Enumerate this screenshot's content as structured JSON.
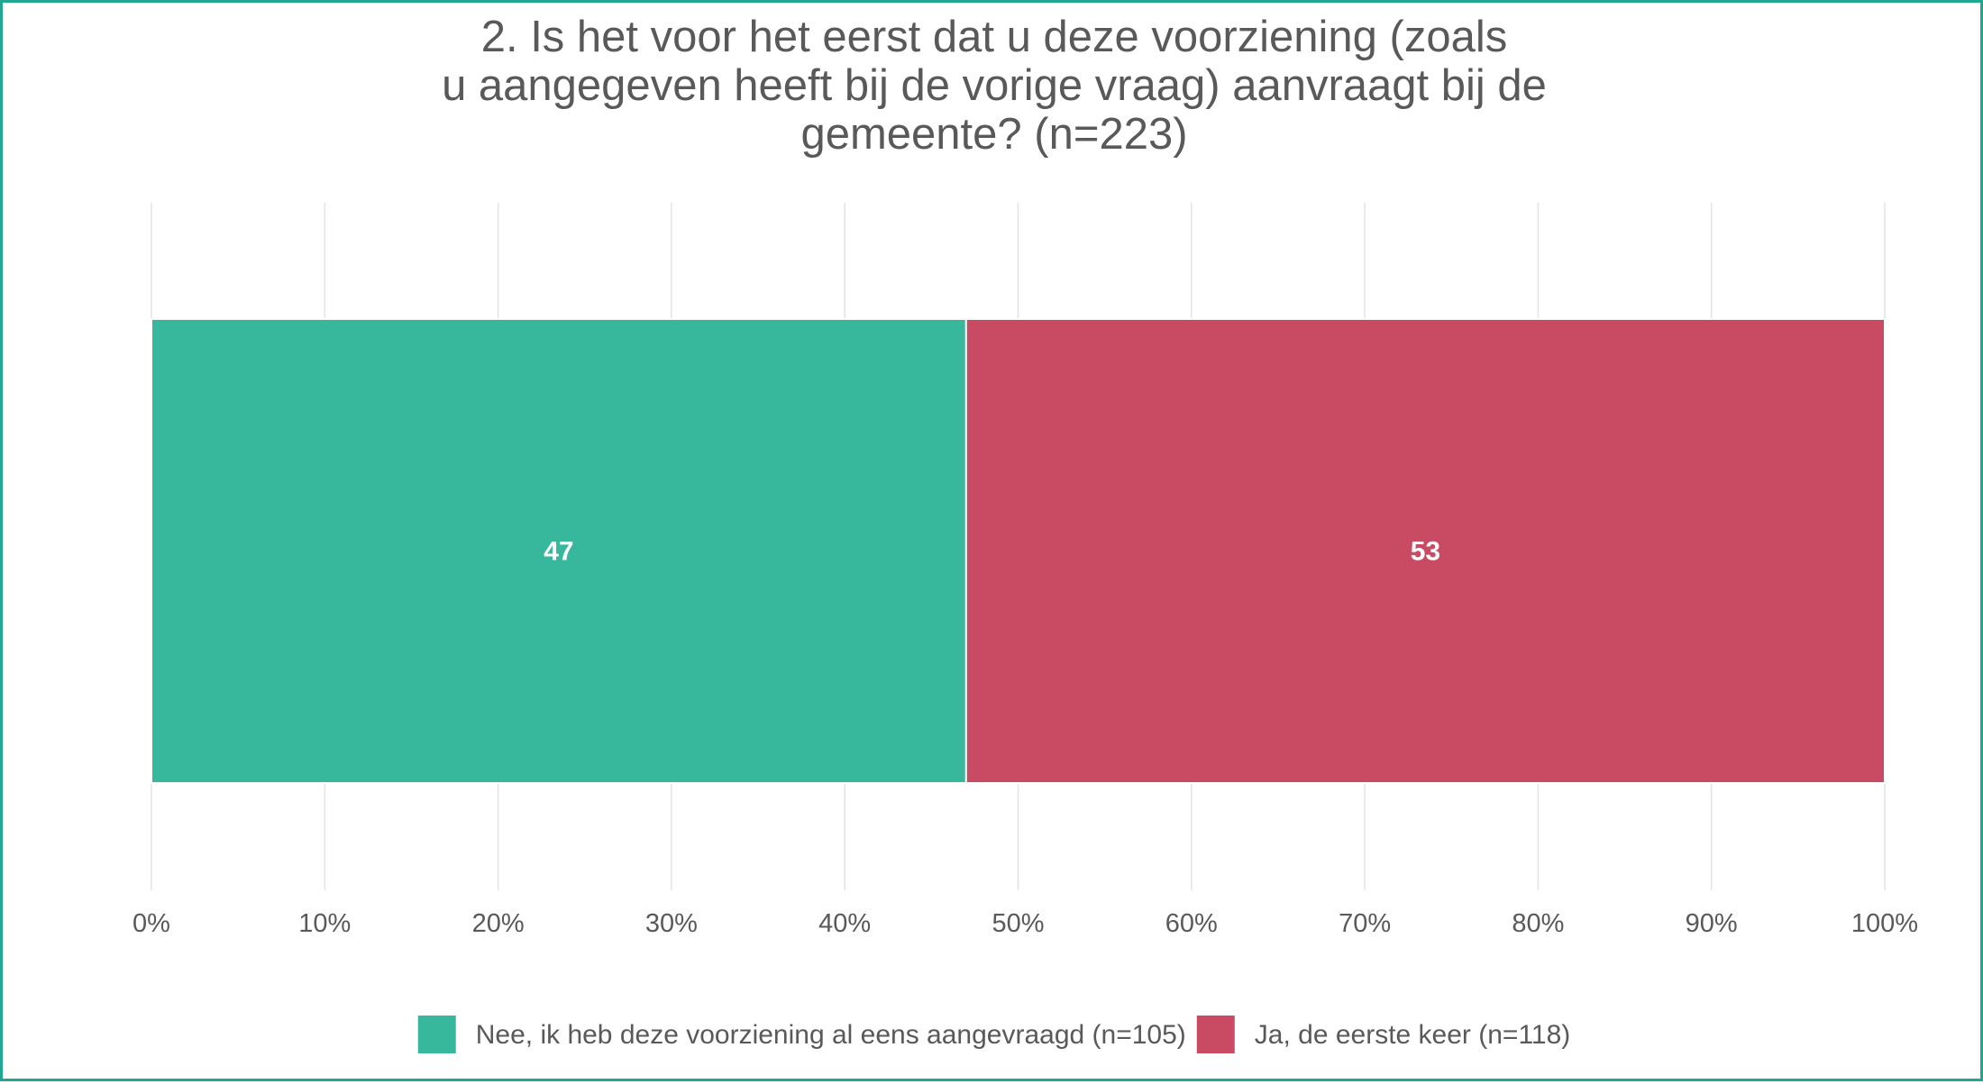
{
  "chart_data": {
    "type": "bar",
    "orientation": "horizontal",
    "stacked": true,
    "title_lines": [
      "2. Is het voor het eerst dat u deze voorziening (zoals",
      "u aangegeven heeft bij de vorige vraag) aanvraagt bij de",
      "gemeente? (n=223)"
    ],
    "xlabel": "",
    "ylabel": "",
    "xlim": [
      0,
      100
    ],
    "x_ticks": [
      "0%",
      "10%",
      "20%",
      "30%",
      "40%",
      "50%",
      "60%",
      "70%",
      "80%",
      "90%",
      "100%"
    ],
    "grid": true,
    "legend_position": "bottom",
    "series": [
      {
        "name": "Nee, ik heb deze voorziening al eens aangevraagd (n=105)",
        "value": 47,
        "label": "47",
        "color": "#37b79c"
      },
      {
        "name": "Ja, de eerste keer (n=118)",
        "value": 53,
        "label": "53",
        "color": "#c84a63"
      }
    ]
  }
}
